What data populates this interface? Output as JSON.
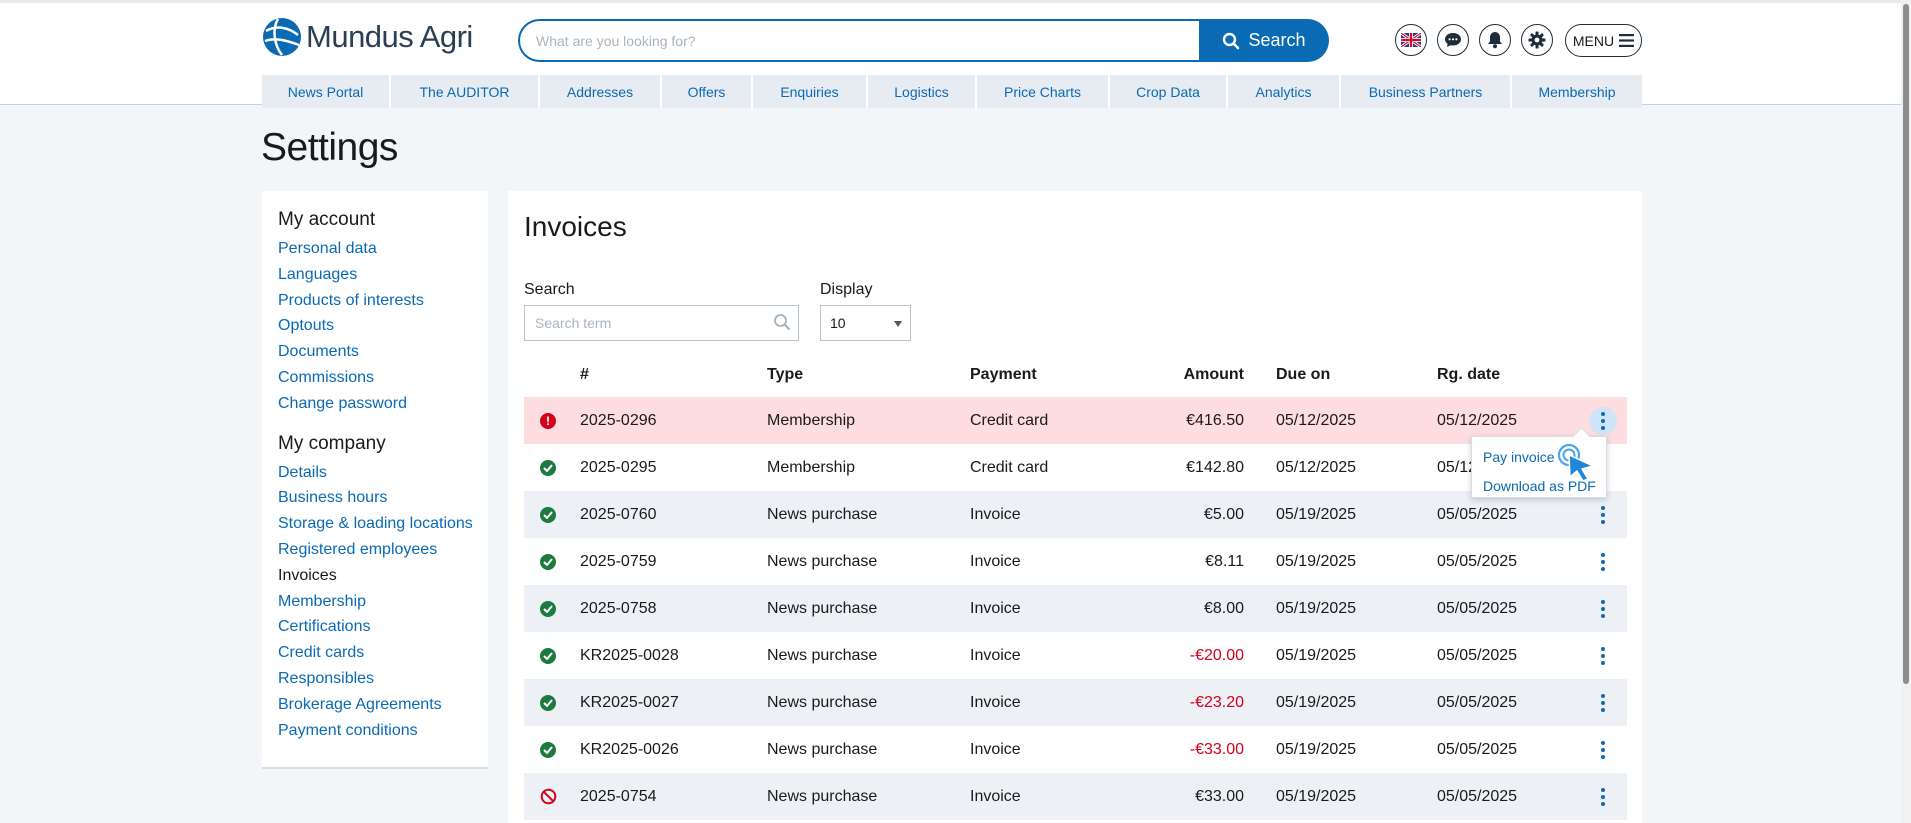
{
  "header": {
    "logo_text": "Mundus Agri",
    "search_placeholder": "What are you looking for?",
    "search_button": "Search",
    "menu_label": "MENU"
  },
  "nav": [
    {
      "label": "News Portal"
    },
    {
      "label": "The AUDITOR"
    },
    {
      "label": "Addresses"
    },
    {
      "label": "Offers"
    },
    {
      "label": "Enquiries"
    },
    {
      "label": "Logistics"
    },
    {
      "label": "Price Charts"
    },
    {
      "label": "Crop Data"
    },
    {
      "label": "Analytics"
    },
    {
      "label": "Business Partners"
    },
    {
      "label": "Membership"
    }
  ],
  "page_title": "Settings",
  "sidebar": {
    "account_heading": "My account",
    "account_links": [
      "Personal data",
      "Languages",
      "Products of interests",
      "Optouts",
      "Documents",
      "Commissions",
      "Change password"
    ],
    "company_heading": "My company",
    "company_links": [
      "Details",
      "Business hours",
      "Storage & loading locations",
      "Registered employees",
      "Invoices",
      "Membership",
      "Certifications",
      "Credit cards",
      "Responsibles",
      "Brokerage Agreements",
      "Payment conditions"
    ],
    "active": "Invoices"
  },
  "invoices": {
    "title": "Invoices",
    "search_label": "Search",
    "search_placeholder": "Search term",
    "display_label": "Display",
    "display_value": "10",
    "columns": {
      "num": "#",
      "type": "Type",
      "payment": "Payment",
      "amount": "Amount",
      "due": "Due on",
      "rg": "Rg. date"
    },
    "rows": [
      {
        "status": "error",
        "num": "2025-0296",
        "type": "Membership",
        "payment": "Credit card",
        "amount": "€416.50",
        "due": "05/12/2025",
        "rg": "05/12/2025"
      },
      {
        "status": "ok",
        "num": "2025-0295",
        "type": "Membership",
        "payment": "Credit card",
        "amount": "€142.80",
        "due": "05/12/2025",
        "rg": "05/12/2025"
      },
      {
        "status": "ok",
        "num": "2025-0760",
        "type": "News purchase",
        "payment": "Invoice",
        "amount": "€5.00",
        "due": "05/19/2025",
        "rg": "05/05/2025"
      },
      {
        "status": "ok",
        "num": "2025-0759",
        "type": "News purchase",
        "payment": "Invoice",
        "amount": "€8.11",
        "due": "05/19/2025",
        "rg": "05/05/2025"
      },
      {
        "status": "ok",
        "num": "2025-0758",
        "type": "News purchase",
        "payment": "Invoice",
        "amount": "€8.00",
        "due": "05/19/2025",
        "rg": "05/05/2025"
      },
      {
        "status": "ok",
        "num": "KR2025-0028",
        "type": "News purchase",
        "payment": "Invoice",
        "amount": "-€20.00",
        "due": "05/19/2025",
        "rg": "05/05/2025"
      },
      {
        "status": "ok",
        "num": "KR2025-0027",
        "type": "News purchase",
        "payment": "Invoice",
        "amount": "-€23.20",
        "due": "05/19/2025",
        "rg": "05/05/2025"
      },
      {
        "status": "ok",
        "num": "KR2025-0026",
        "type": "News purchase",
        "payment": "Invoice",
        "amount": "-€33.00",
        "due": "05/19/2025",
        "rg": "05/05/2025"
      },
      {
        "status": "cancelled",
        "num": "2025-0754",
        "type": "News purchase",
        "payment": "Invoice",
        "amount": "€33.00",
        "due": "05/19/2025",
        "rg": "05/05/2025"
      }
    ]
  },
  "row_menu": {
    "pay_invoice": "Pay invoice",
    "download_pdf": "Download as PDF"
  },
  "colors": {
    "brand": "#0a6ab4",
    "ok": "#1e7b3f",
    "error": "#d0021b",
    "highlight_row": "#fddde0"
  }
}
